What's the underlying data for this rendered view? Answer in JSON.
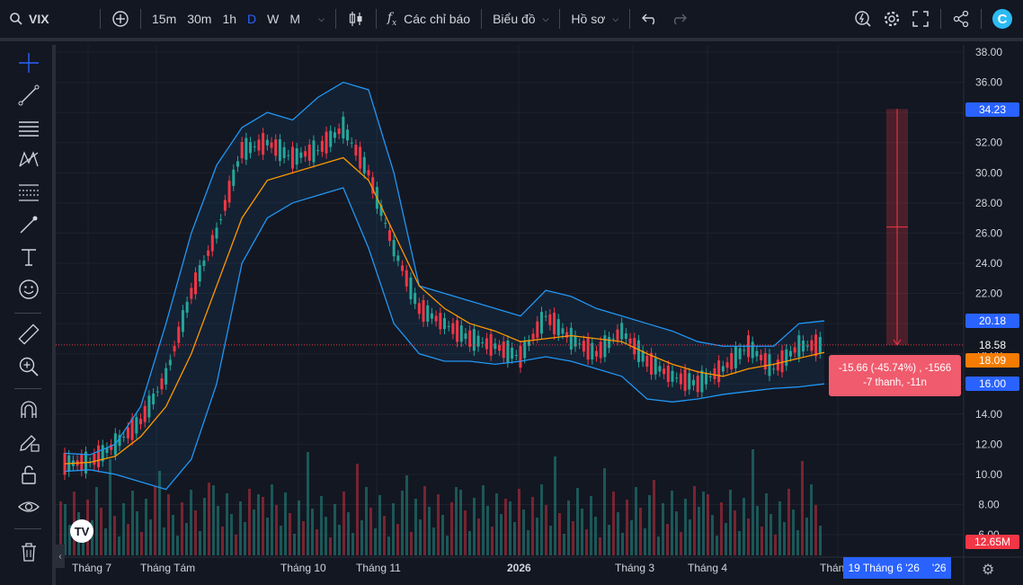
{
  "toolbar": {
    "symbol": "VIX",
    "timeframes": [
      "15m",
      "30m",
      "1h",
      "D",
      "W",
      "M"
    ],
    "active_timeframe": "D",
    "indicators_label": "Các chỉ báo",
    "chart_type_label": "Biểu đồ",
    "profile_label": "Hồ sơ",
    "accent": "#2962ff"
  },
  "price_axis": {
    "labels": [
      "38.00",
      "36.00",
      "34.00",
      "32.00",
      "30.00",
      "28.00",
      "26.00",
      "24.00",
      "22.00",
      "20.00",
      "18.00",
      "16.00",
      "14.00",
      "12.00",
      "10.00",
      "8.00",
      "6.00"
    ]
  },
  "time_axis": {
    "labels": [
      "Tháng 7",
      "Tháng Tám",
      "Tháng 10",
      "Tháng 11",
      "2026",
      "Tháng 3",
      "Tháng 4",
      "Thán"
    ],
    "crosshair_date": "19 Tháng 6 '26",
    "crosshair_suffix": "'26"
  },
  "badges": {
    "upper_band": {
      "value": "20.18",
      "color": "#2962ff"
    },
    "last_price": {
      "value": "18.58",
      "color": "#131722"
    },
    "ma": {
      "value": "18.09",
      "color": "#f57c00"
    },
    "lower_band": {
      "value": "16.00",
      "color": "#2962ff"
    },
    "measure_top": {
      "value": "34.23",
      "color": "#2962ff"
    },
    "volume": {
      "value": "12.65M",
      "color": "#f23645"
    }
  },
  "measure": {
    "line1": "-15.66 (-45.74%) , -1566",
    "line2": "-7 thanh, -11n"
  },
  "colors": {
    "up": "#26a69a",
    "down": "#f23645",
    "band": "#2196f3",
    "ma": "#ff9800",
    "bg": "#131722"
  },
  "chart_data": {
    "type": "line",
    "title": "VIX",
    "x_labels": [
      "Tháng 7",
      "Tháng Tám",
      "Tháng 10",
      "Tháng 11",
      "2026",
      "Tháng 3",
      "Tháng 4"
    ],
    "close": [
      10.7,
      10.8,
      12.0,
      13.5,
      16.5,
      22.0,
      26.0,
      31.5,
      32.0,
      31.0,
      31.5,
      33.0,
      30.0,
      25.0,
      21.0,
      20.0,
      19.0,
      18.5,
      17.8,
      20.5,
      19.0,
      18.0,
      19.5,
      17.5,
      16.5,
      16.0,
      17.0,
      18.5,
      17.0,
      18.5,
      18.58
    ],
    "ma": [
      10.7,
      10.8,
      11.2,
      12.5,
      14.5,
      18.0,
      22.5,
      27.0,
      29.5,
      30.0,
      30.5,
      31.0,
      29.5,
      26.0,
      22.5,
      21.0,
      20.0,
      19.5,
      18.8,
      19.0,
      19.2,
      19.0,
      18.8,
      18.0,
      17.3,
      16.8,
      16.5,
      17.0,
      17.3,
      17.7,
      18.09
    ],
    "upper": [
      11.4,
      11.3,
      12.0,
      14.5,
      20.0,
      26.0,
      30.5,
      33.0,
      34.0,
      33.5,
      35.0,
      36.0,
      35.5,
      30.0,
      22.5,
      22.0,
      21.5,
      21.0,
      20.5,
      22.2,
      21.8,
      21.0,
      20.5,
      20.0,
      19.5,
      18.8,
      18.5,
      18.5,
      18.5,
      20.0,
      20.18
    ],
    "lower": [
      10.2,
      10.3,
      10.0,
      9.5,
      9.0,
      11.0,
      16.0,
      24.0,
      27.0,
      28.0,
      28.5,
      29.0,
      25.0,
      20.0,
      18.0,
      17.5,
      17.5,
      17.3,
      17.5,
      17.8,
      17.5,
      17.0,
      16.5,
      15.0,
      14.8,
      15.0,
      15.3,
      15.5,
      15.7,
      15.8,
      16.0
    ],
    "last": 18.58,
    "ylim": [
      6,
      38
    ],
    "grid": true
  }
}
